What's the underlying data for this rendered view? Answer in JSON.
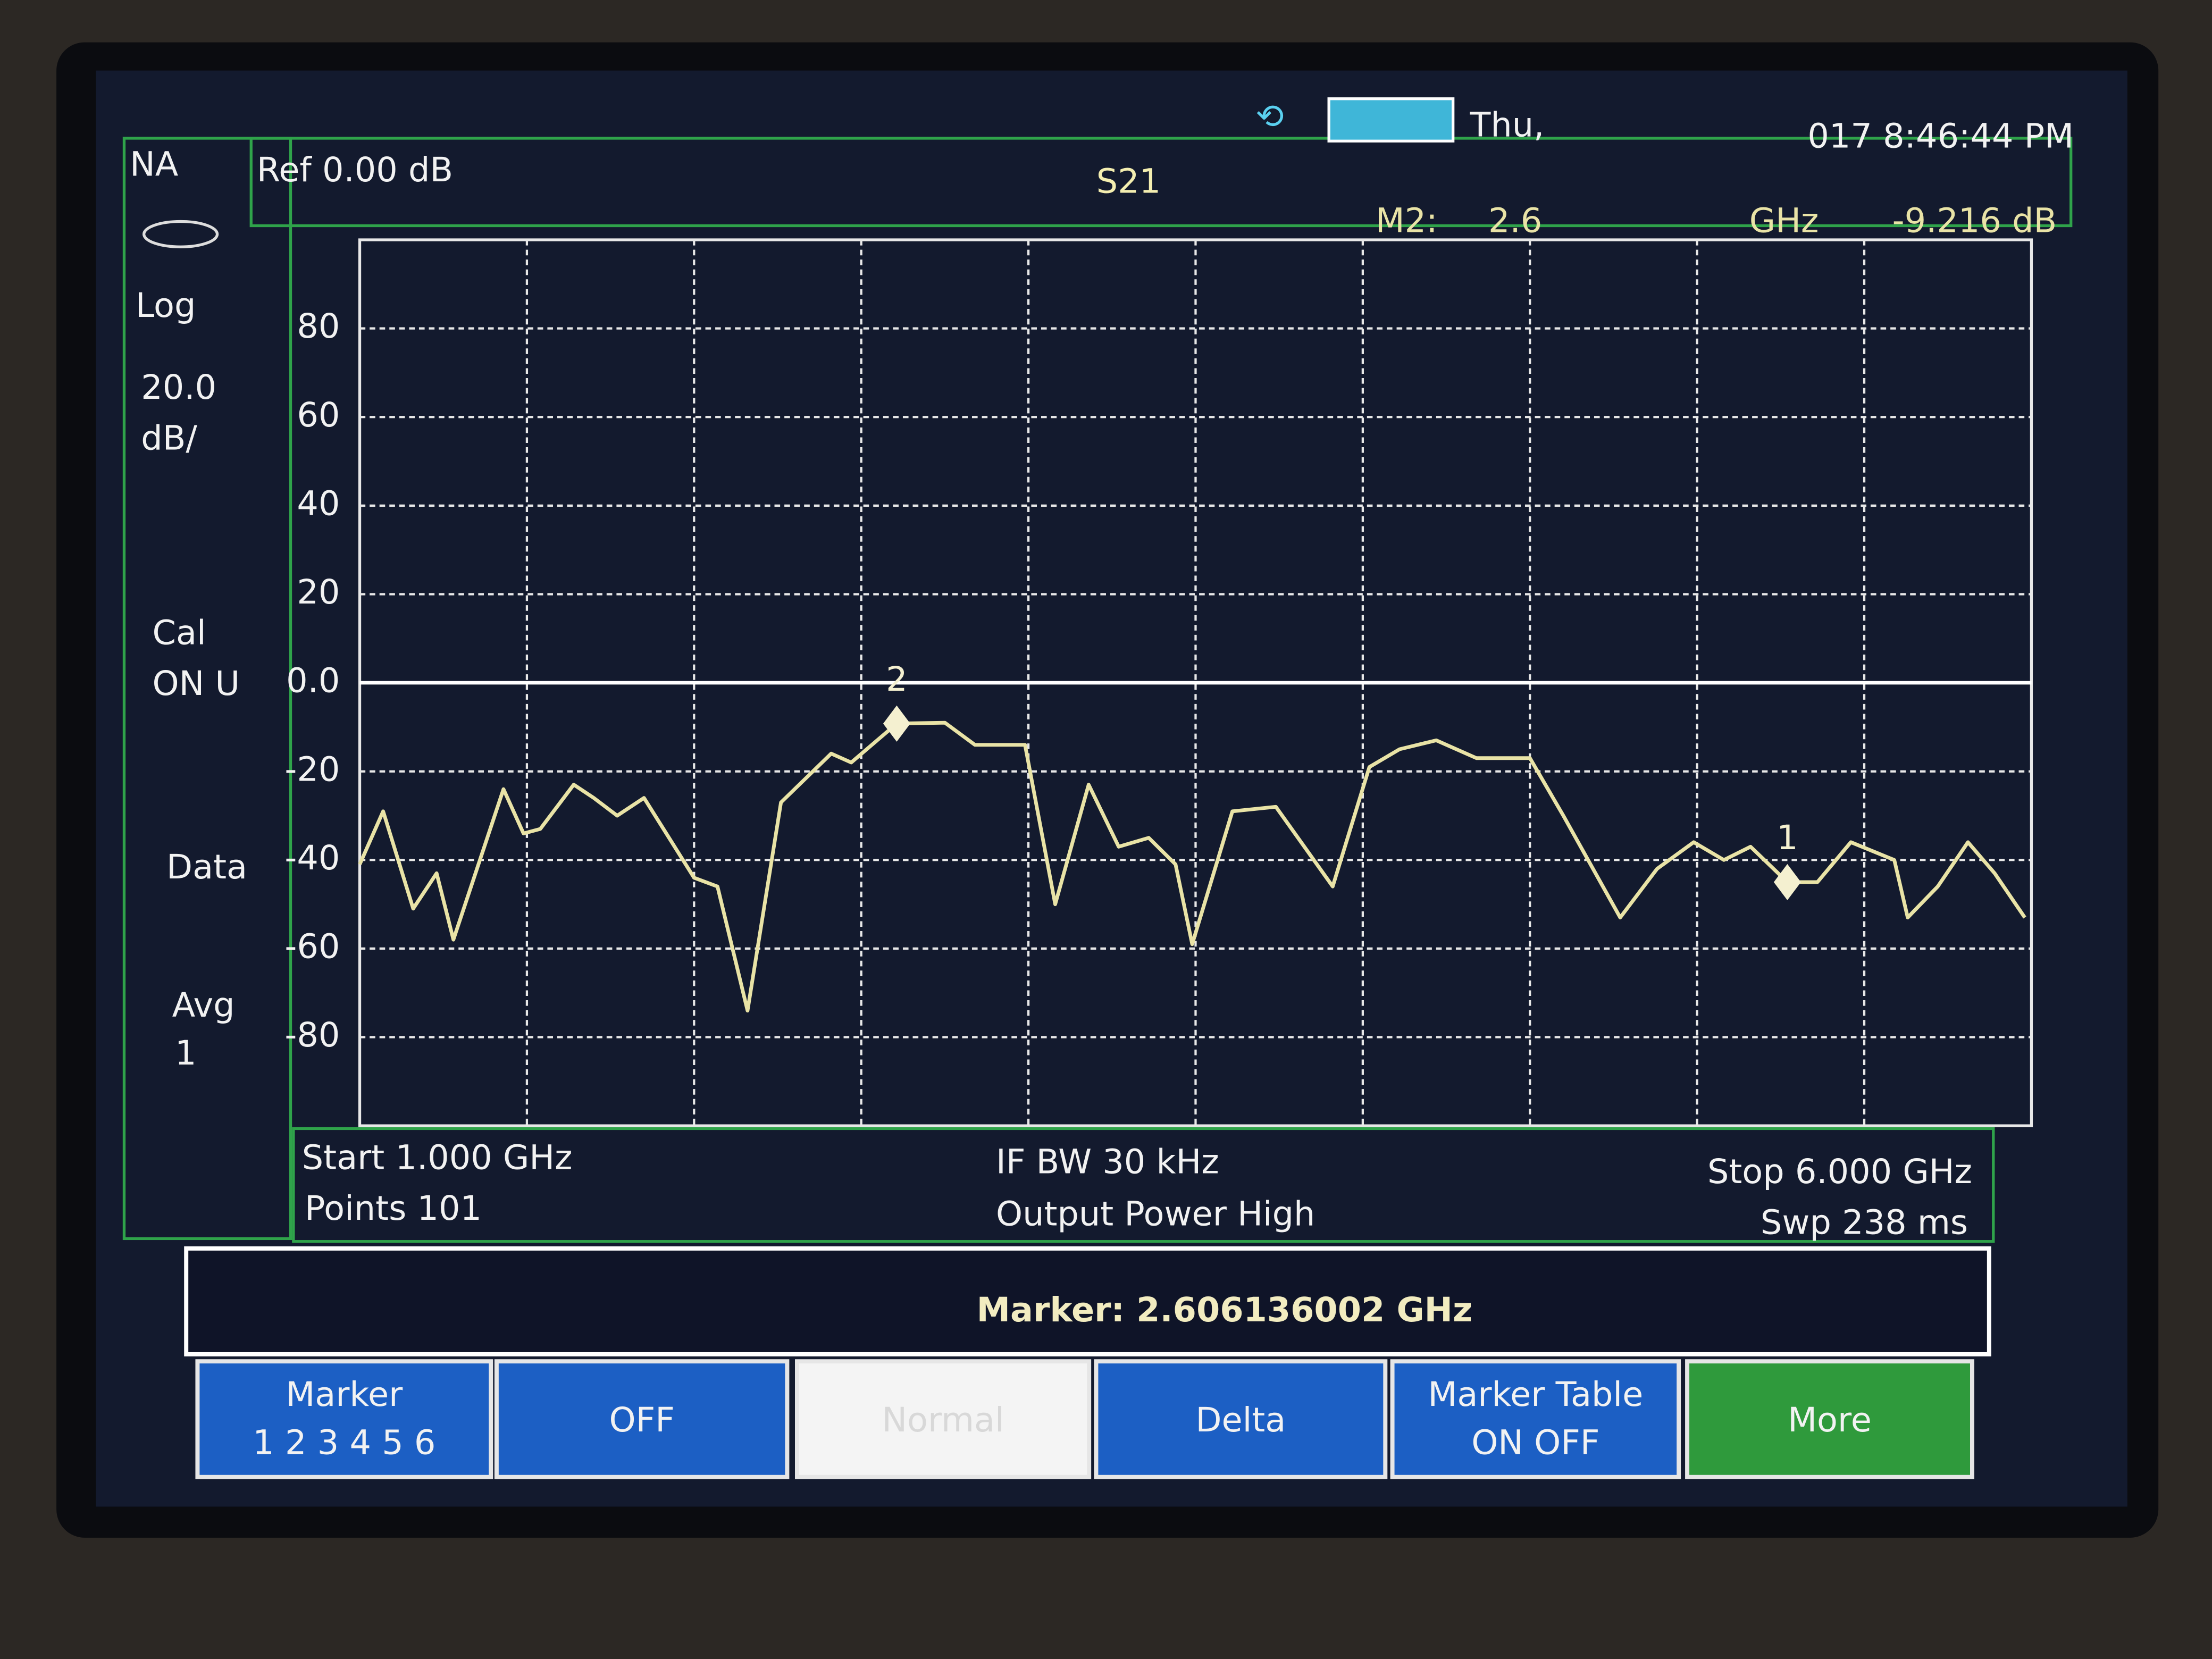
{
  "status": {
    "day": "Thu,",
    "time": "017 8:46:44 PM"
  },
  "left_panel": {
    "mode": "NA",
    "format": "Log",
    "scale": "20.0",
    "scale_unit": "dB/",
    "cal": "Cal",
    "cal_state": "ON U",
    "data": "Data",
    "avg": "Avg",
    "avg_count": "1"
  },
  "header": {
    "ref": "Ref 0.00 dB",
    "trace": "S21",
    "marker_name": "M2:",
    "marker_freq": "2.6",
    "marker_unit": "GHz",
    "marker_value": "-9.216 dB"
  },
  "chart_data": {
    "type": "line",
    "color": "#e9e3a6",
    "x": [
      1.0,
      1.07,
      1.16,
      1.23,
      1.28,
      1.43,
      1.49,
      1.54,
      1.64,
      1.7,
      1.77,
      1.85,
      2.0,
      2.07,
      2.16,
      2.26,
      2.41,
      2.47,
      2.606136002,
      2.75,
      2.84,
      2.99,
      3.08,
      3.18,
      3.27,
      3.36,
      3.44,
      3.49,
      3.61,
      3.74,
      3.91,
      4.02,
      4.11,
      4.22,
      4.34,
      4.5,
      4.6,
      4.77,
      4.88,
      4.99,
      5.08,
      5.16,
      5.27,
      5.36,
      5.46,
      5.59,
      5.63,
      5.72,
      5.81,
      5.89,
      5.98
    ],
    "values": [
      -41,
      -29,
      -51,
      -43,
      -58,
      -24,
      -34,
      -33,
      -23,
      -26,
      -30,
      -26,
      -44,
      -46,
      -74,
      -27,
      -16,
      -18,
      -9.216,
      -9,
      -14,
      -14,
      -50,
      -23,
      -37,
      -35,
      -41,
      -59,
      -29,
      -28,
      -46,
      -19,
      -15,
      -13,
      -17,
      -17,
      -30,
      -53,
      -42,
      -36,
      -40,
      -37,
      -45,
      -45,
      -36,
      -40,
      -53,
      -46,
      -36,
      -43,
      -53
    ],
    "xlim": [
      1,
      6
    ],
    "ylim": [
      -100,
      100
    ],
    "yticks": [
      -80,
      -60,
      -40,
      -20,
      {
        "value": 0,
        "label": "0.0"
      },
      20,
      40,
      60,
      80
    ],
    "grid": true,
    "reference": 0,
    "markers": [
      {
        "label": "1",
        "x": 5.27,
        "y": -45
      },
      {
        "label": "2",
        "x": 2.606136002,
        "y": -9.216
      }
    ]
  },
  "footer": {
    "start": "Start 1.000 GHz",
    "points": "Points 101",
    "ifbw": "IF BW 30 kHz",
    "power": "Output Power High",
    "stop": "Stop 6.000 GHz",
    "sweep": "Swp 238 ms"
  },
  "marker_readout": "Marker:  2.606136002 GHz",
  "softkeys": [
    {
      "label": "Marker",
      "sub": "1 2 3 4 5 6"
    },
    {
      "label": "OFF"
    },
    {
      "label": "Normal"
    },
    {
      "label": "Delta"
    },
    {
      "label": "Marker Table",
      "sub": "ON  OFF"
    },
    {
      "label": "More"
    }
  ]
}
